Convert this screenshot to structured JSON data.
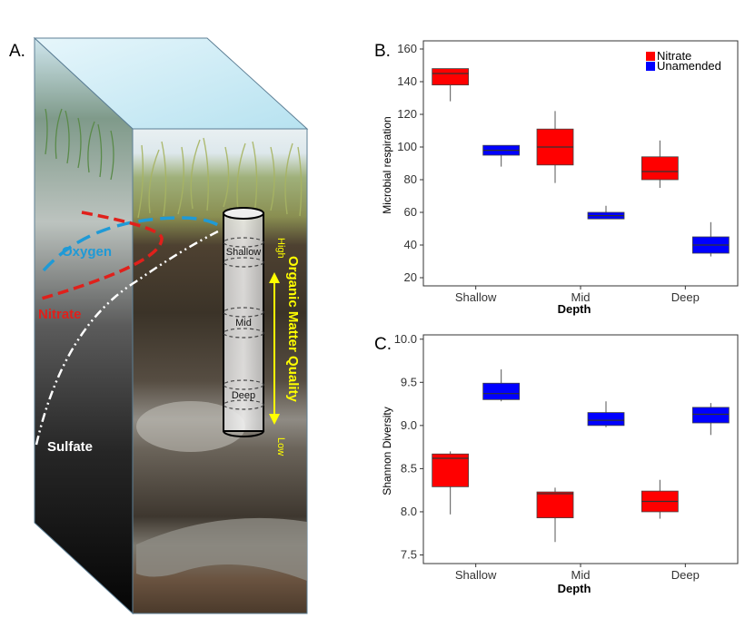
{
  "panel_a": {
    "letter": "A.",
    "curves": {
      "oxygen": {
        "label": "Oxygen",
        "color": "#1f9ad6"
      },
      "nitrate": {
        "label": "Nitrate",
        "color": "#e0201b"
      },
      "sulfate": {
        "label": "Sulfate",
        "color": "#ffffff"
      }
    },
    "core_depths": [
      "Shallow",
      "Mid",
      "Deep"
    ],
    "quality_title": "Organic Matter Quality",
    "quality_high": "High",
    "quality_low": "Low",
    "quality_color": "#ffff00"
  },
  "chart_data": [
    {
      "type": "box",
      "panel": "B.",
      "xlabel": "Depth",
      "ylabel": "Microbial respiration",
      "categories": [
        "Shallow",
        "Mid",
        "Deep"
      ],
      "ylim": [
        15,
        165
      ],
      "yticks": [
        20,
        40,
        60,
        80,
        100,
        120,
        140,
        160
      ],
      "legend_position": "top-right",
      "series": [
        {
          "name": "Nitrate",
          "color": "#ff0000",
          "boxes": [
            {
              "min": 128,
              "q1": 138,
              "median": 145,
              "q3": 148,
              "max": 148
            },
            {
              "min": 78,
              "q1": 89,
              "median": 100,
              "q3": 111,
              "max": 122
            },
            {
              "min": 75,
              "q1": 80,
              "median": 85,
              "q3": 94,
              "max": 104
            }
          ]
        },
        {
          "name": "Unamended",
          "color": "#0000ff",
          "boxes": [
            {
              "min": 88,
              "q1": 95,
              "median": 98,
              "q3": 101,
              "max": 101
            },
            {
              "min": 56,
              "q1": 56,
              "median": 58,
              "q3": 60,
              "max": 64
            },
            {
              "min": 33,
              "q1": 35,
              "median": 40,
              "q3": 45,
              "max": 54
            }
          ]
        }
      ]
    },
    {
      "type": "box",
      "panel": "C.",
      "xlabel": "Depth",
      "ylabel": "Shannon Diversity",
      "categories": [
        "Shallow",
        "Mid",
        "Deep"
      ],
      "ylim": [
        7.4,
        10.05
      ],
      "yticks": [
        7.5,
        8.0,
        8.5,
        9.0,
        9.5,
        10.0
      ],
      "ytick_labels": [
        "7.5",
        "8.0",
        "8.5",
        "9.0",
        "9.5",
        "10.0"
      ],
      "series": [
        {
          "name": "Nitrate",
          "color": "#ff0000",
          "boxes": [
            {
              "min": 7.97,
              "q1": 8.29,
              "median": 8.62,
              "q3": 8.67,
              "max": 8.7
            },
            {
              "min": 7.65,
              "q1": 7.93,
              "median": 8.21,
              "q3": 8.23,
              "max": 8.28
            },
            {
              "min": 7.92,
              "q1": 8.0,
              "median": 8.12,
              "q3": 8.24,
              "max": 8.37
            }
          ]
        },
        {
          "name": "Unamended",
          "color": "#0000ff",
          "boxes": [
            {
              "min": 9.28,
              "q1": 9.3,
              "median": 9.37,
              "q3": 9.49,
              "max": 9.65
            },
            {
              "min": 8.98,
              "q1": 9.0,
              "median": 9.06,
              "q3": 9.15,
              "max": 9.28
            },
            {
              "min": 8.89,
              "q1": 9.03,
              "median": 9.13,
              "q3": 9.21,
              "max": 9.26
            }
          ]
        }
      ]
    }
  ]
}
